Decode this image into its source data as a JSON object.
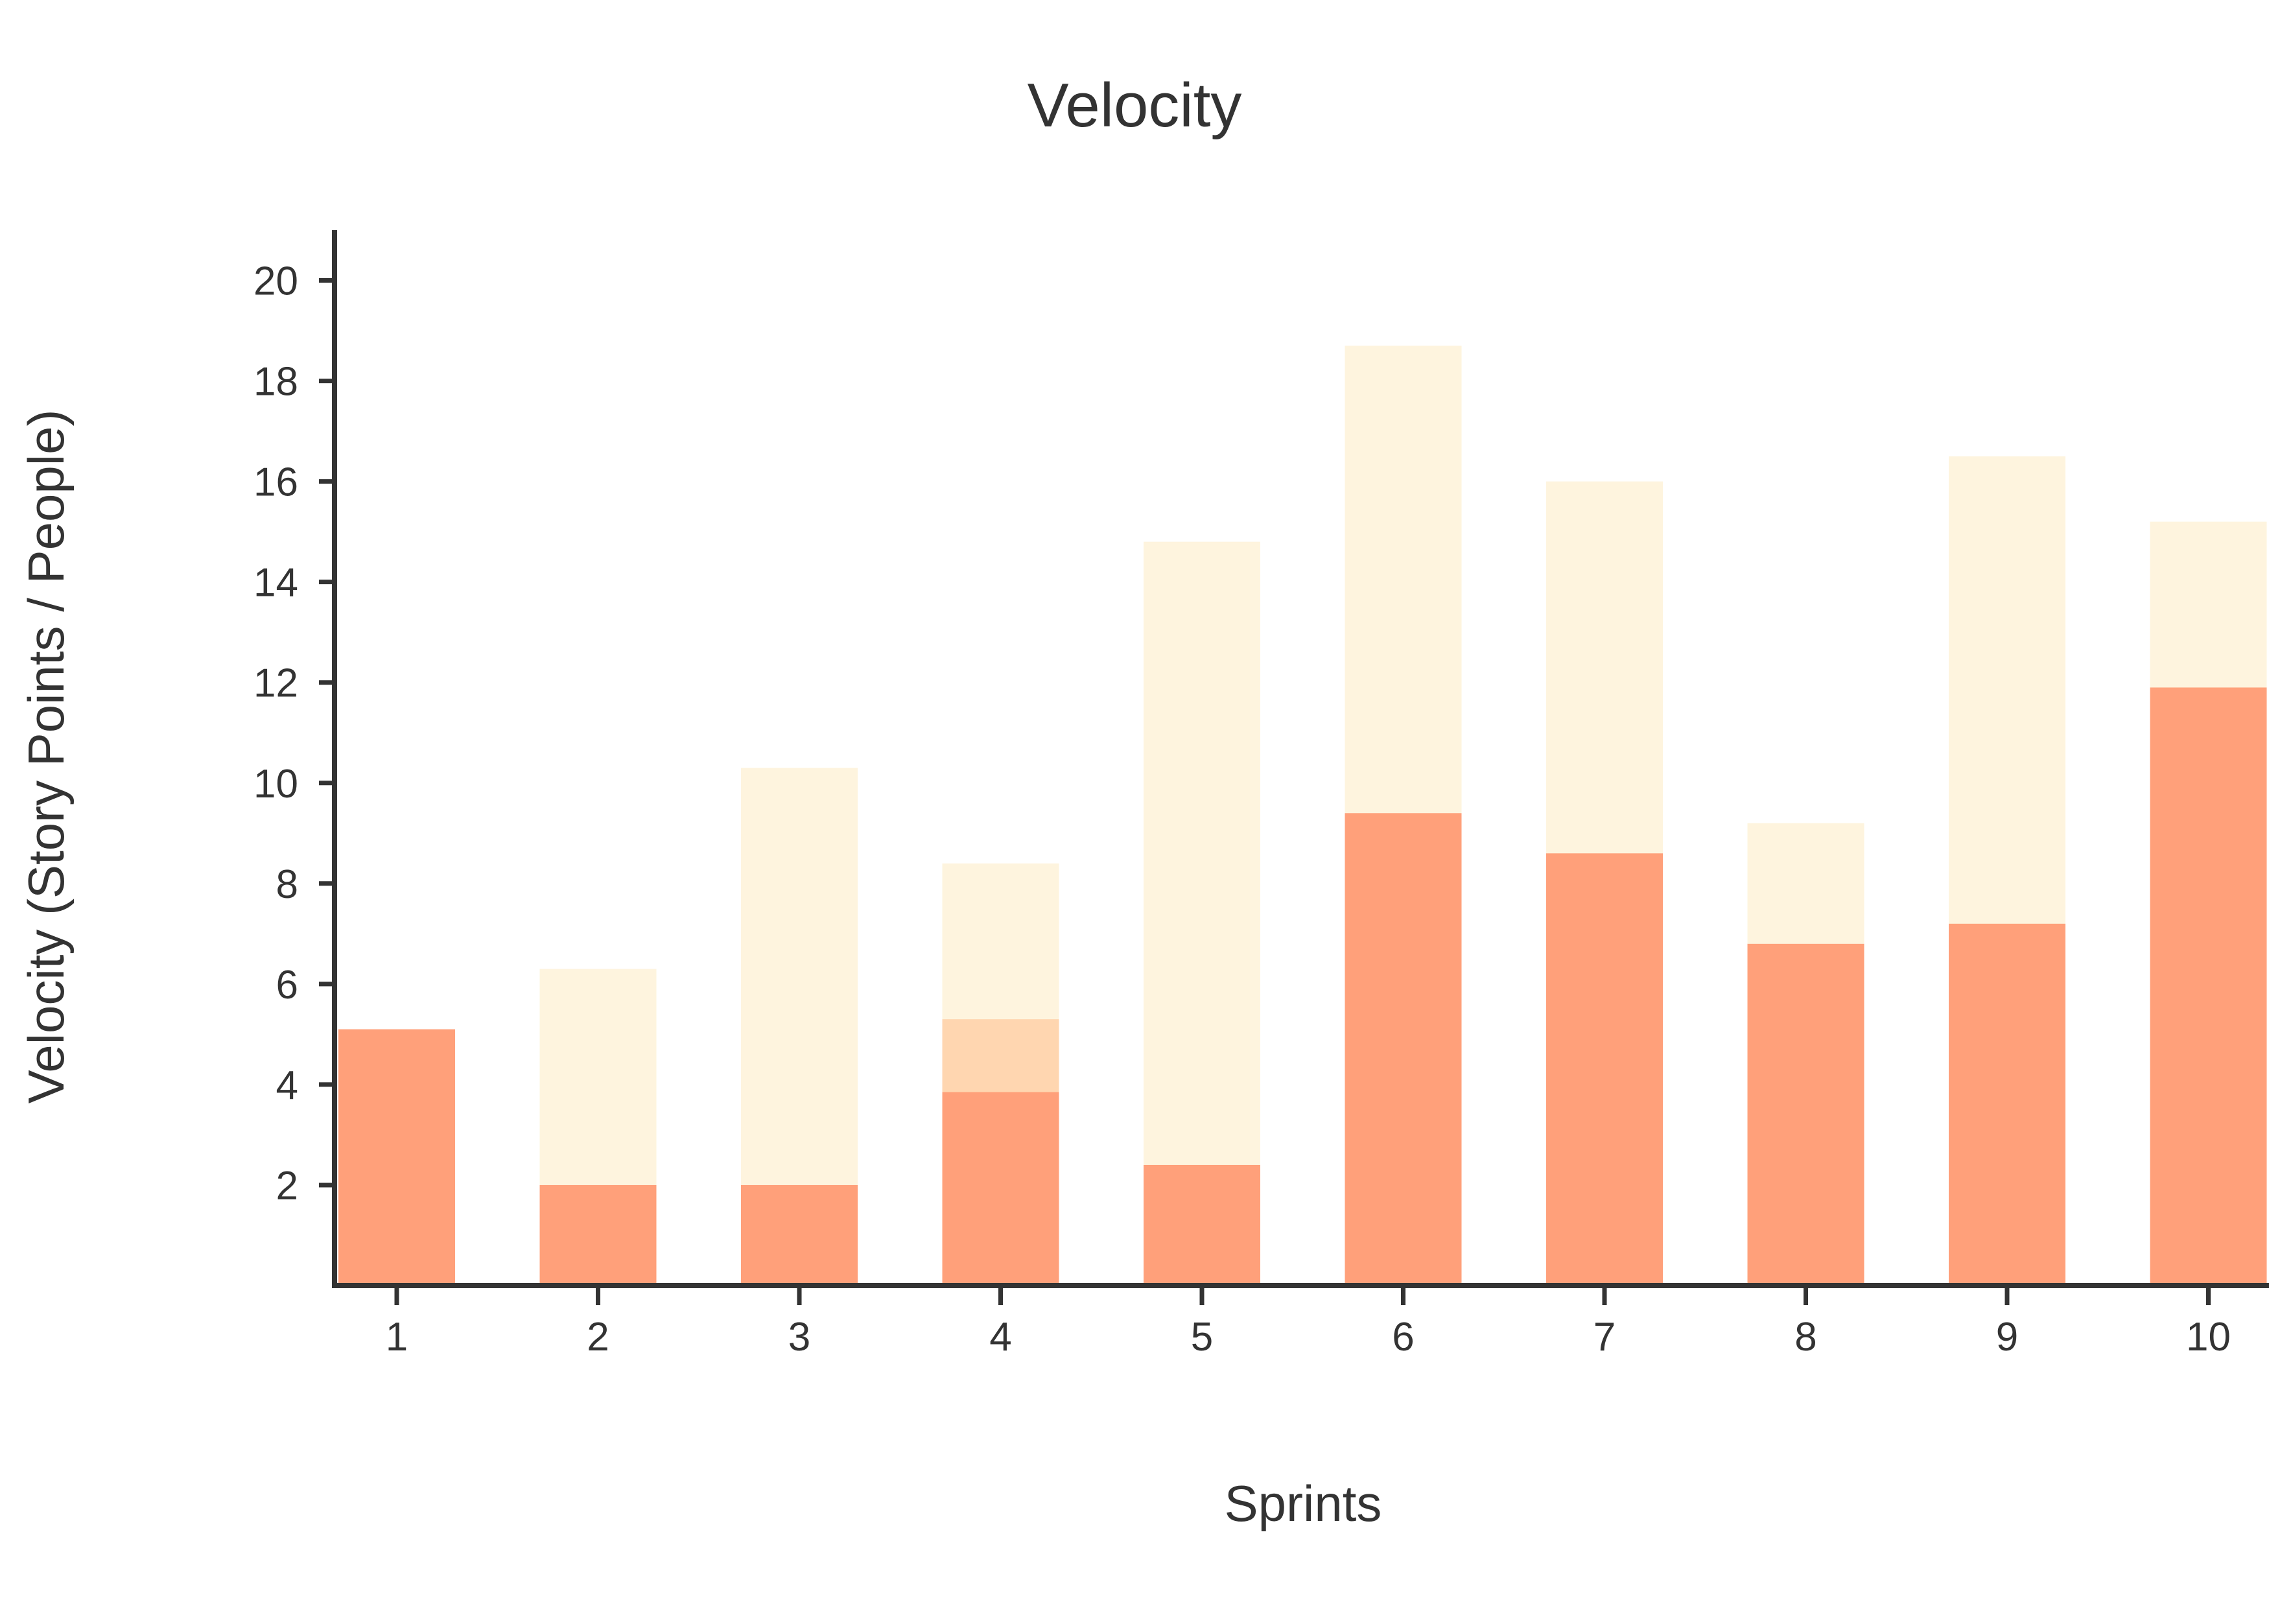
{
  "chart_data": {
    "type": "bar",
    "title": "Velocity",
    "xlabel": "Sprints",
    "ylabel": "Velocity (Story Points / People)",
    "categories": [
      "1",
      "2",
      "3",
      "4",
      "5",
      "6",
      "7",
      "8",
      "9",
      "10"
    ],
    "yticks": [
      "2",
      "4",
      "6",
      "8",
      "10",
      "12",
      "14",
      "16",
      "18",
      "20"
    ],
    "ylim": [
      0,
      21
    ],
    "grid": false,
    "legend": "none",
    "series": [
      {
        "values": [
          5.1,
          6.3,
          10.3,
          8.4,
          14.8,
          18.7,
          16.0,
          9.2,
          16.5,
          15.2
        ],
        "color": "#fef4de"
      },
      {
        "values": [
          0,
          0,
          0,
          5.3,
          0,
          0,
          0,
          0,
          0,
          0
        ],
        "color": "#ffd6b0"
      },
      {
        "values": [
          5.1,
          2.0,
          2.0,
          3.85,
          2.4,
          9.4,
          8.6,
          6.8,
          7.2,
          11.9
        ],
        "color": "#ffa07a"
      }
    ],
    "axis_color": "#333333"
  }
}
